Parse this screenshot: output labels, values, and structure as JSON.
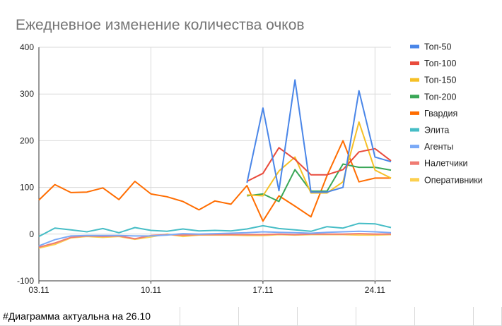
{
  "chart_data": {
    "type": "line",
    "title": "Ежедневное изменение количества очков",
    "xlabel": "",
    "ylabel": "",
    "ylim": [
      -100,
      400
    ],
    "y_ticks": [
      "400",
      "300",
      "200",
      "100",
      "0",
      "-100"
    ],
    "y_tick_values": [
      400,
      300,
      200,
      100,
      0,
      -100
    ],
    "x_tick_labels": [
      "03.11",
      "10.11",
      "17.11",
      "24.11"
    ],
    "x_tick_days": [
      0,
      7,
      14,
      21
    ],
    "x_start_day": 0,
    "x_end_day": 22,
    "legend_position": "right",
    "grid": true,
    "series": [
      {
        "name": "Топ-50",
        "color": "#4a86e8",
        "start": 13,
        "values": [
          110,
          270,
          93,
          330,
          90,
          90,
          100,
          307,
          165,
          155
        ]
      },
      {
        "name": "Топ-100",
        "color": "#e94b3c",
        "start": 13,
        "values": [
          113,
          130,
          185,
          160,
          127,
          127,
          138,
          176,
          183,
          157
        ]
      },
      {
        "name": "Топ-150",
        "color": "#f6c026",
        "start": 13,
        "values": [
          84,
          82,
          135,
          165,
          88,
          88,
          112,
          240,
          137,
          120
        ]
      },
      {
        "name": "Топ-200",
        "color": "#3aa757",
        "start": 13,
        "values": [
          82,
          86,
          70,
          138,
          92,
          92,
          150,
          143,
          143,
          137
        ]
      },
      {
        "name": "Гвардия",
        "color": "#ff6d01",
        "start": 0,
        "values": [
          73,
          106,
          89,
          90,
          99,
          74,
          113,
          86,
          80,
          70,
          52,
          71,
          64,
          104,
          28,
          82,
          60,
          37,
          125,
          200,
          112,
          120,
          120
        ]
      },
      {
        "name": "Элита",
        "color": "#46bdc6",
        "start": 0,
        "values": [
          -5,
          13,
          9,
          5,
          12,
          3,
          14,
          8,
          6,
          11,
          7,
          8,
          7,
          11,
          18,
          12,
          9,
          6,
          16,
          13,
          23,
          22,
          14
        ]
      },
      {
        "name": "Агенты",
        "color": "#7baaf7",
        "start": 0,
        "values": [
          -25,
          -12,
          -4,
          -3,
          -3,
          -3,
          -4,
          -4,
          -2,
          1,
          0,
          1,
          2,
          3,
          5,
          4,
          3,
          2,
          4,
          5,
          6,
          5,
          3
        ]
      },
      {
        "name": "Налетчики",
        "color": "#f07b72",
        "start": 0,
        "values": [
          -28,
          -19,
          -7,
          -4,
          -5,
          -4,
          -10,
          -3,
          -1,
          -2,
          -1,
          -1,
          -1,
          -1,
          -1,
          0,
          -1,
          0,
          0,
          0,
          1,
          0,
          0
        ]
      },
      {
        "name": "Оперативники",
        "color": "#fcd04f",
        "start": 0,
        "values": [
          -30,
          -22,
          -8,
          -5,
          -7,
          -5,
          -11,
          -6,
          0,
          -5,
          -2,
          -2,
          -2,
          -3,
          -3,
          -1,
          -2,
          -1,
          -1,
          -1,
          -2,
          -2,
          -1
        ]
      }
    ]
  },
  "sheet": {
    "note": "#Диаграмма актуальна на 26.10"
  }
}
